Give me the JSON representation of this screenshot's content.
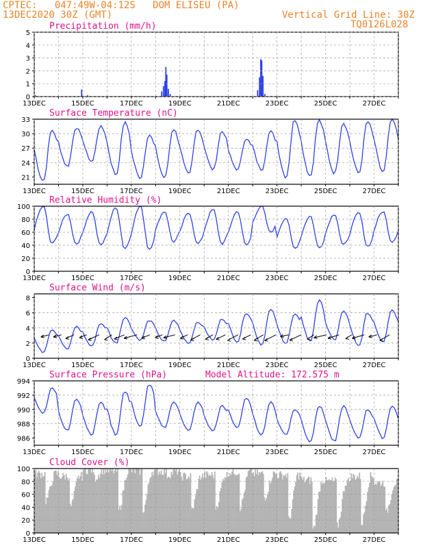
{
  "header": {
    "line1_left": "CPTEC:   047:49W-04:12S   DOM ELISEU (PA)",
    "line2_left": "13DEC2020 30Z (GMT)",
    "line1_right": "Vertical Grid Line: 30Z",
    "line2_right": "TQ0126L028"
  },
  "colors": {
    "header": "#e8842a",
    "title": "#e0138c",
    "line": "#2b3fe8",
    "cloud": "#b4b4b4",
    "grid": "#9a9a9a"
  },
  "chart_data": [
    {
      "type": "bar",
      "title": "Precipitation (mm/h)",
      "ylim": [
        0,
        5
      ],
      "yticks": [
        "0",
        "1",
        "2",
        "3",
        "4",
        "5"
      ],
      "xticks": [
        "13DEC",
        "15DEC",
        "17DEC",
        "19DEC",
        "21DEC",
        "23DEC",
        "25DEC",
        "27DEC"
      ],
      "x_is_day_offset": true,
      "bars": [
        [
          0.05,
          0.1
        ],
        [
          1.95,
          0.55
        ],
        [
          2.2,
          0.1
        ],
        [
          5.25,
          0.4
        ],
        [
          5.32,
          0.8
        ],
        [
          5.38,
          1.2
        ],
        [
          5.42,
          2.3
        ],
        [
          5.46,
          1.7
        ],
        [
          5.52,
          0.6
        ],
        [
          5.6,
          0.2
        ],
        [
          9.2,
          0.5
        ],
        [
          9.28,
          1.5
        ],
        [
          9.33,
          2.9
        ],
        [
          9.37,
          2.8
        ],
        [
          9.42,
          1.6
        ],
        [
          9.5,
          0.2
        ],
        [
          11.1,
          0.05
        ],
        [
          12.4,
          0.05
        ],
        [
          14.6,
          0.05
        ]
      ],
      "xlim_days": [
        0,
        15.0
      ]
    },
    {
      "type": "line",
      "title": "Surface Temperature (nC)",
      "ylim": [
        19.5,
        33
      ],
      "yticks": [
        "21",
        "24",
        "27",
        "30",
        "33"
      ],
      "ytick_values": [
        21,
        24,
        27,
        30,
        33
      ],
      "xticks": [
        "13DEC",
        "15DEC",
        "17DEC",
        "19DEC",
        "21DEC",
        "23DEC",
        "25DEC",
        "27DEC"
      ],
      "mins": [
        20.2,
        23.2,
        24.2,
        21.5,
        20.8,
        20.8,
        21.5,
        22.5,
        22.5,
        22.5,
        21.0,
        21.2,
        21.8,
        21.8,
        22.0
      ],
      "maxs": [
        30.8,
        31.3,
        31.5,
        32.3,
        29.8,
        31.0,
        31.0,
        30.5,
        29.0,
        30.5,
        33.0,
        32.8,
        32.3,
        32.5,
        33.0
      ]
    },
    {
      "type": "line",
      "title": "Relative Humidity (%)",
      "ylim": [
        0,
        100
      ],
      "yticks": [
        "0",
        "20",
        "40",
        "60",
        "80",
        "100"
      ],
      "ytick_values": [
        0,
        20,
        40,
        60,
        80,
        100
      ],
      "xticks": [
        "13DEC",
        "15DEC",
        "17DEC",
        "19DEC",
        "21DEC",
        "23DEC",
        "25DEC",
        "27DEC"
      ],
      "maxs": [
        100,
        88,
        92,
        98,
        100,
        92,
        90,
        95,
        92,
        100,
        82,
        85,
        88,
        90,
        92
      ],
      "mins": [
        42,
        42,
        40,
        35,
        34,
        45,
        42,
        42,
        40,
        60,
        35,
        36,
        40,
        38,
        45
      ]
    },
    {
      "type": "line",
      "title": "Surface Wind (m/s)",
      "ylim": [
        0,
        8.5
      ],
      "yticks": [
        "0",
        "2",
        "4",
        "6",
        "8"
      ],
      "ytick_values": [
        0,
        2,
        4,
        6,
        8
      ],
      "xticks": [
        "13DEC",
        "15DEC",
        "17DEC",
        "19DEC",
        "21DEC",
        "23DEC",
        "25DEC",
        "27DEC"
      ],
      "mins": [
        0.8,
        1.2,
        1.6,
        2.0,
        2.4,
        2.2,
        2.0,
        2.4,
        2.2,
        1.8,
        2.0,
        2.2,
        2.4,
        1.6,
        2.2
      ],
      "maxs": [
        3.8,
        4.2,
        4.6,
        5.4,
        5.0,
        5.0,
        4.8,
        5.2,
        6.0,
        6.4,
        5.8,
        7.6,
        6.2,
        6.0,
        6.4
      ]
    },
    {
      "type": "line",
      "title": "Surface Pressure (hPa)",
      "annotation": "Model Altitude: 172.575 m",
      "ylim": [
        985,
        994
      ],
      "yticks": [
        "986",
        "988",
        "990",
        "992",
        "994"
      ],
      "ytick_values": [
        986,
        988,
        990,
        992,
        994
      ],
      "xticks": [
        "13DEC",
        "15DEC",
        "17DEC",
        "19DEC",
        "21DEC",
        "23DEC",
        "25DEC",
        "27DEC"
      ],
      "maxs": [
        993.0,
        991.5,
        991.0,
        992.5,
        993.5,
        991.0,
        991.0,
        990.5,
        991.5,
        991.0,
        990.0,
        990.5,
        990.5,
        990.0,
        990.5
      ],
      "mins": [
        989.5,
        987.0,
        986.5,
        986.5,
        987.5,
        987.5,
        987.0,
        987.0,
        987.5,
        986.5,
        986.5,
        985.5,
        985.5,
        986.0,
        986.0
      ]
    },
    {
      "type": "bar",
      "title": "Cloud Cover (%)",
      "ylim": [
        0,
        100
      ],
      "yticks": [
        "0",
        "20",
        "40",
        "60",
        "80",
        "100"
      ],
      "ytick_values": [
        0,
        20,
        40,
        60,
        80,
        100
      ],
      "xticks": [
        "13DEC",
        "15DEC",
        "17DEC",
        "19DEC",
        "21DEC",
        "23DEC",
        "25DEC",
        "27DEC"
      ],
      "daily_levels": [
        92,
        88,
        98,
        96,
        96,
        96,
        88,
        90,
        95,
        92,
        90,
        82,
        80,
        88,
        78
      ],
      "daily_dips": [
        50,
        40,
        85,
        35,
        35,
        90,
        35,
        40,
        40,
        55,
        20,
        5,
        10,
        15,
        30
      ]
    }
  ]
}
